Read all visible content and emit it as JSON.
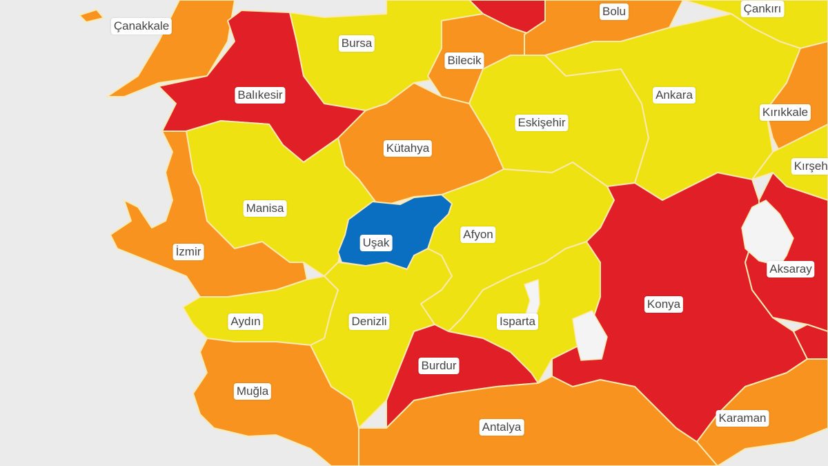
{
  "colors": {
    "red": "#e01f26",
    "orange": "#f7931e",
    "yellow": "#efe213",
    "blue": "#0b6fc1",
    "sea": "#ebebeb",
    "label_bg": "#ffffff",
    "label_text": "#444444"
  },
  "provinces": {
    "canakkale": {
      "name": "Çanakkale",
      "level": "orange"
    },
    "balikesir": {
      "name": "Balıkesir",
      "level": "red"
    },
    "bursa": {
      "name": "Bursa",
      "level": "yellow"
    },
    "bilecik": {
      "name": "Bilecik",
      "level": "orange"
    },
    "bolu": {
      "name": "Bolu",
      "level": "orange"
    },
    "cankiri": {
      "name": "Çankırı",
      "level": "yellow"
    },
    "eskisehir": {
      "name": "Eskişehir",
      "level": "yellow"
    },
    "ankara": {
      "name": "Ankara",
      "level": "yellow"
    },
    "kirikkale": {
      "name": "Kırıkkale",
      "level": "orange"
    },
    "kirsehir": {
      "name": "Kırşehir",
      "level": "yellow"
    },
    "kutahya": {
      "name": "Kütahya",
      "level": "orange"
    },
    "manisa": {
      "name": "Manisa",
      "level": "yellow"
    },
    "izmir": {
      "name": "İzmir",
      "level": "orange"
    },
    "usak": {
      "name": "Uşak",
      "level": "blue"
    },
    "afyon": {
      "name": "Afyon",
      "level": "yellow"
    },
    "aydin": {
      "name": "Aydın",
      "level": "yellow"
    },
    "denizli": {
      "name": "Denizli",
      "level": "yellow"
    },
    "isparta": {
      "name": "Isparta",
      "level": "yellow"
    },
    "burdur": {
      "name": "Burdur",
      "level": "red"
    },
    "mugla": {
      "name": "Muğla",
      "level": "orange"
    },
    "antalya": {
      "name": "Antalya",
      "level": "orange"
    },
    "konya": {
      "name": "Konya",
      "level": "red"
    },
    "karaman": {
      "name": "Karaman",
      "level": "orange"
    },
    "aksaray": {
      "name": "Aksaray",
      "level": "red"
    }
  }
}
